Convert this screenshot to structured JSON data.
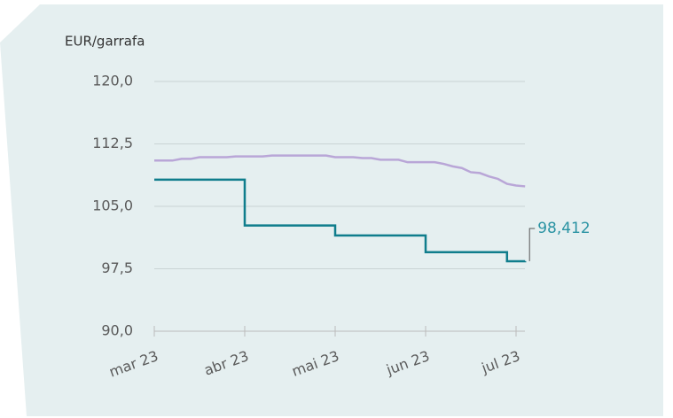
{
  "chart_data": {
    "type": "line",
    "y_label": "EUR/garrafa",
    "categories": [
      "mar 23",
      null,
      null,
      null,
      null,
      null,
      null,
      null,
      null,
      null,
      "abr 23",
      null,
      null,
      null,
      null,
      null,
      null,
      null,
      null,
      null,
      "mai 23",
      null,
      null,
      null,
      null,
      null,
      null,
      null,
      null,
      null,
      "jun 23",
      null,
      null,
      null,
      null,
      null,
      null,
      null,
      null,
      null,
      "jul 23",
      null
    ],
    "series": [
      {
        "color": "#0f7d8c",
        "step": true,
        "values": [
          108.2,
          108.2,
          108.2,
          108.2,
          108.2,
          108.2,
          108.2,
          108.2,
          108.2,
          108.2,
          102.7,
          102.7,
          102.7,
          102.7,
          102.7,
          102.7,
          102.7,
          102.7,
          102.7,
          102.7,
          101.5,
          101.5,
          101.5,
          101.5,
          101.5,
          101.5,
          101.5,
          101.5,
          101.5,
          101.5,
          99.5,
          99.5,
          99.5,
          99.5,
          99.5,
          99.5,
          99.5,
          99.5,
          99.5,
          98.4,
          98.4,
          98.412
        ],
        "value_labels": [
          null,
          null,
          null,
          null,
          null,
          null,
          null,
          null,
          null,
          null,
          null,
          null,
          null,
          null,
          null,
          null,
          null,
          null,
          null,
          null,
          null,
          null,
          null,
          null,
          null,
          null,
          null,
          null,
          null,
          null,
          null,
          null,
          null,
          null,
          null,
          null,
          null,
          null,
          null,
          null,
          null,
          "98,412"
        ],
        "label_color": "#2a93a3"
      },
      {
        "color": "#b9a6d7",
        "step": false,
        "values": [
          110.5,
          110.5,
          110.5,
          110.7,
          110.7,
          110.9,
          110.9,
          110.9,
          110.9,
          111.0,
          111.0,
          111.0,
          111.0,
          111.1,
          111.1,
          111.1,
          111.1,
          111.1,
          111.1,
          111.1,
          110.9,
          110.9,
          110.9,
          110.8,
          110.8,
          110.6,
          110.6,
          110.6,
          110.3,
          110.3,
          110.3,
          110.3,
          110.1,
          109.8,
          109.6,
          109.1,
          109.0,
          108.6,
          108.3,
          107.7,
          107.5,
          107.4
        ]
      }
    ],
    "ylim": [
      90,
      120
    ],
    "yticks": [
      {
        "value": 90,
        "label": "90,0"
      },
      {
        "value": 97.5,
        "label": "97,5"
      },
      {
        "value": 105,
        "label": "105,0"
      },
      {
        "value": 112.5,
        "label": "112,5"
      },
      {
        "value": 120,
        "label": "120,0"
      }
    ],
    "grid": true
  }
}
